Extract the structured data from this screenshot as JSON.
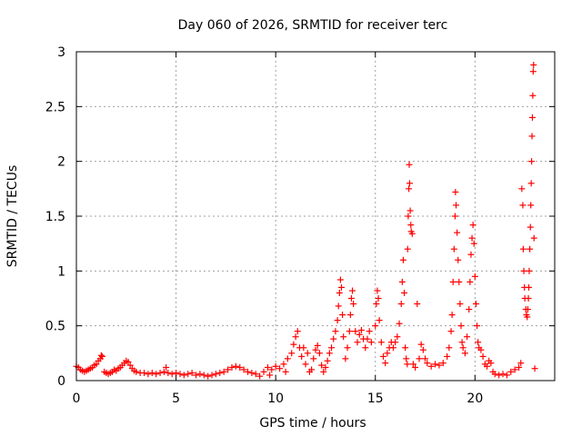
{
  "chart_data": {
    "type": "scatter",
    "title": "Day 060 of 2026, SRMTID for receiver terc",
    "xlabel": "GPS time / hours",
    "ylabel": "SRMTID / TECUs",
    "xlim": [
      0,
      24
    ],
    "ylim": [
      0,
      3
    ],
    "x_ticks": [
      0,
      5,
      10,
      15,
      20
    ],
    "x_tick_labels": [
      "0",
      "5",
      "10",
      "15",
      "20"
    ],
    "y_ticks": [
      0,
      0.5,
      1,
      1.5,
      2,
      2.5,
      3
    ],
    "y_tick_labels": [
      "0",
      "0.5",
      "1",
      "1.5",
      "2",
      "2.5",
      "3"
    ],
    "grid": true,
    "marker": "+",
    "color": "#ff0000",
    "series": [
      {
        "name": "SRMTID",
        "points": [
          [
            0.0,
            0.13
          ],
          [
            0.1,
            0.12
          ],
          [
            0.2,
            0.1
          ],
          [
            0.3,
            0.09
          ],
          [
            0.4,
            0.08
          ],
          [
            0.5,
            0.09
          ],
          [
            0.6,
            0.1
          ],
          [
            0.7,
            0.11
          ],
          [
            0.8,
            0.12
          ],
          [
            0.9,
            0.14
          ],
          [
            1.0,
            0.15
          ],
          [
            1.1,
            0.18
          ],
          [
            1.2,
            0.2
          ],
          [
            1.25,
            0.23
          ],
          [
            1.3,
            0.22
          ],
          [
            1.4,
            0.08
          ],
          [
            1.5,
            0.07
          ],
          [
            1.6,
            0.06
          ],
          [
            1.7,
            0.07
          ],
          [
            1.8,
            0.08
          ],
          [
            1.9,
            0.1
          ],
          [
            2.0,
            0.09
          ],
          [
            2.1,
            0.11
          ],
          [
            2.2,
            0.12
          ],
          [
            2.3,
            0.14
          ],
          [
            2.4,
            0.16
          ],
          [
            2.5,
            0.18
          ],
          [
            2.6,
            0.17
          ],
          [
            2.7,
            0.14
          ],
          [
            2.8,
            0.11
          ],
          [
            2.9,
            0.09
          ],
          [
            3.0,
            0.08
          ],
          [
            3.2,
            0.07
          ],
          [
            3.4,
            0.07
          ],
          [
            3.6,
            0.06
          ],
          [
            3.8,
            0.07
          ],
          [
            4.0,
            0.06
          ],
          [
            4.2,
            0.07
          ],
          [
            4.4,
            0.08
          ],
          [
            4.5,
            0.12
          ],
          [
            4.6,
            0.07
          ],
          [
            4.8,
            0.06
          ],
          [
            5.0,
            0.07
          ],
          [
            5.2,
            0.06
          ],
          [
            5.4,
            0.05
          ],
          [
            5.6,
            0.06
          ],
          [
            5.8,
            0.07
          ],
          [
            6.0,
            0.05
          ],
          [
            6.2,
            0.06
          ],
          [
            6.4,
            0.05
          ],
          [
            6.6,
            0.04
          ],
          [
            6.8,
            0.05
          ],
          [
            7.0,
            0.06
          ],
          [
            7.2,
            0.07
          ],
          [
            7.4,
            0.08
          ],
          [
            7.6,
            0.1
          ],
          [
            7.8,
            0.12
          ],
          [
            8.0,
            0.13
          ],
          [
            8.2,
            0.12
          ],
          [
            8.4,
            0.1
          ],
          [
            8.6,
            0.08
          ],
          [
            8.8,
            0.07
          ],
          [
            9.0,
            0.06
          ],
          [
            9.2,
            0.04
          ],
          [
            9.4,
            0.08
          ],
          [
            9.6,
            0.12
          ],
          [
            9.7,
            0.05
          ],
          [
            9.8,
            0.1
          ],
          [
            10.0,
            0.13
          ],
          [
            10.2,
            0.11
          ],
          [
            10.4,
            0.15
          ],
          [
            10.5,
            0.08
          ],
          [
            10.6,
            0.2
          ],
          [
            10.8,
            0.25
          ],
          [
            10.9,
            0.33
          ],
          [
            11.0,
            0.4
          ],
          [
            11.1,
            0.45
          ],
          [
            11.2,
            0.3
          ],
          [
            11.3,
            0.22
          ],
          [
            11.4,
            0.3
          ],
          [
            11.5,
            0.15
          ],
          [
            11.6,
            0.25
          ],
          [
            11.7,
            0.08
          ],
          [
            11.8,
            0.1
          ],
          [
            11.9,
            0.2
          ],
          [
            12.0,
            0.28
          ],
          [
            12.1,
            0.32
          ],
          [
            12.2,
            0.25
          ],
          [
            12.3,
            0.14
          ],
          [
            12.4,
            0.08
          ],
          [
            12.5,
            0.12
          ],
          [
            12.6,
            0.18
          ],
          [
            12.7,
            0.25
          ],
          [
            12.8,
            0.3
          ],
          [
            12.9,
            0.38
          ],
          [
            13.0,
            0.45
          ],
          [
            13.1,
            0.55
          ],
          [
            13.15,
            0.68
          ],
          [
            13.2,
            0.8
          ],
          [
            13.25,
            0.92
          ],
          [
            13.3,
            0.85
          ],
          [
            13.35,
            0.6
          ],
          [
            13.4,
            0.4
          ],
          [
            13.5,
            0.2
          ],
          [
            13.6,
            0.3
          ],
          [
            13.7,
            0.45
          ],
          [
            13.75,
            0.6
          ],
          [
            13.8,
            0.75
          ],
          [
            13.85,
            0.82
          ],
          [
            13.9,
            0.7
          ],
          [
            14.0,
            0.45
          ],
          [
            14.1,
            0.35
          ],
          [
            14.2,
            0.42
          ],
          [
            14.3,
            0.46
          ],
          [
            14.4,
            0.38
          ],
          [
            14.5,
            0.3
          ],
          [
            14.6,
            0.38
          ],
          [
            14.7,
            0.45
          ],
          [
            14.8,
            0.35
          ],
          [
            15.0,
            0.5
          ],
          [
            15.05,
            0.7
          ],
          [
            15.1,
            0.82
          ],
          [
            15.15,
            0.75
          ],
          [
            15.2,
            0.55
          ],
          [
            15.3,
            0.35
          ],
          [
            15.4,
            0.22
          ],
          [
            15.5,
            0.16
          ],
          [
            15.6,
            0.25
          ],
          [
            15.7,
            0.3
          ],
          [
            15.8,
            0.35
          ],
          [
            15.9,
            0.3
          ],
          [
            16.0,
            0.35
          ],
          [
            16.1,
            0.4
          ],
          [
            16.2,
            0.52
          ],
          [
            16.3,
            0.7
          ],
          [
            16.35,
            0.9
          ],
          [
            16.4,
            1.1
          ],
          [
            16.45,
            0.8
          ],
          [
            16.5,
            0.3
          ],
          [
            16.55,
            0.2
          ],
          [
            16.6,
            0.15
          ],
          [
            16.62,
            1.2
          ],
          [
            16.65,
            1.5
          ],
          [
            16.68,
            1.75
          ],
          [
            16.7,
            1.97
          ],
          [
            16.72,
            1.8
          ],
          [
            16.75,
            1.55
          ],
          [
            16.78,
            1.42
          ],
          [
            16.8,
            1.36
          ],
          [
            16.85,
            1.34
          ],
          [
            16.9,
            0.15
          ],
          [
            17.0,
            0.12
          ],
          [
            17.1,
            0.7
          ],
          [
            17.2,
            0.2
          ],
          [
            17.3,
            0.33
          ],
          [
            17.4,
            0.28
          ],
          [
            17.5,
            0.2
          ],
          [
            17.6,
            0.16
          ],
          [
            17.8,
            0.13
          ],
          [
            18.0,
            0.15
          ],
          [
            18.2,
            0.14
          ],
          [
            18.4,
            0.16
          ],
          [
            18.6,
            0.22
          ],
          [
            18.7,
            0.3
          ],
          [
            18.8,
            0.45
          ],
          [
            18.85,
            0.6
          ],
          [
            18.9,
            0.9
          ],
          [
            18.95,
            1.2
          ],
          [
            19.0,
            1.5
          ],
          [
            19.02,
            1.72
          ],
          [
            19.05,
            1.6
          ],
          [
            19.1,
            1.35
          ],
          [
            19.15,
            1.1
          ],
          [
            19.2,
            0.9
          ],
          [
            19.25,
            0.7
          ],
          [
            19.3,
            0.5
          ],
          [
            19.35,
            0.35
          ],
          [
            19.4,
            0.3
          ],
          [
            19.5,
            0.25
          ],
          [
            19.6,
            0.4
          ],
          [
            19.7,
            0.65
          ],
          [
            19.75,
            0.9
          ],
          [
            19.8,
            1.15
          ],
          [
            19.85,
            1.3
          ],
          [
            19.9,
            1.42
          ],
          [
            19.95,
            1.25
          ],
          [
            20.0,
            0.95
          ],
          [
            20.05,
            0.7
          ],
          [
            20.1,
            0.5
          ],
          [
            20.15,
            0.35
          ],
          [
            20.2,
            0.3
          ],
          [
            20.3,
            0.28
          ],
          [
            20.4,
            0.22
          ],
          [
            20.5,
            0.15
          ],
          [
            20.6,
            0.13
          ],
          [
            20.7,
            0.18
          ],
          [
            20.8,
            0.16
          ],
          [
            20.9,
            0.08
          ],
          [
            21.0,
            0.06
          ],
          [
            21.2,
            0.05
          ],
          [
            21.4,
            0.06
          ],
          [
            21.6,
            0.05
          ],
          [
            21.8,
            0.08
          ],
          [
            22.0,
            0.1
          ],
          [
            22.2,
            0.12
          ],
          [
            22.3,
            0.16
          ],
          [
            22.35,
            1.75
          ],
          [
            22.4,
            1.6
          ],
          [
            22.42,
            1.2
          ],
          [
            22.45,
            1.0
          ],
          [
            22.48,
            0.85
          ],
          [
            22.5,
            0.75
          ],
          [
            22.55,
            0.65
          ],
          [
            22.58,
            0.6
          ],
          [
            22.62,
            0.58
          ],
          [
            22.65,
            0.65
          ],
          [
            22.68,
            0.75
          ],
          [
            22.7,
            0.85
          ],
          [
            22.72,
            1.0
          ],
          [
            22.75,
            1.2
          ],
          [
            22.78,
            1.4
          ],
          [
            22.8,
            1.6
          ],
          [
            22.82,
            1.8
          ],
          [
            22.84,
            2.0
          ],
          [
            22.86,
            2.23
          ],
          [
            22.88,
            2.4
          ],
          [
            22.9,
            2.6
          ],
          [
            22.92,
            2.82
          ],
          [
            22.94,
            2.88
          ],
          [
            22.96,
            1.3
          ],
          [
            23.0,
            0.11
          ]
        ]
      }
    ]
  }
}
